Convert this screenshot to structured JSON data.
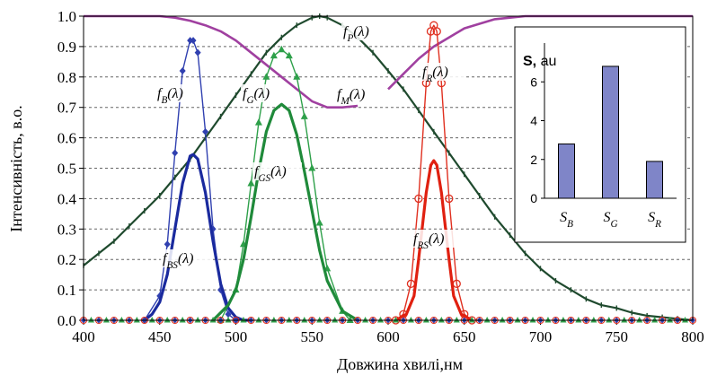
{
  "chart_data": [
    {
      "type": "line",
      "title": "",
      "xlabel": "Довжина хвилі,нм",
      "ylabel": "Інтенсивність, в.о.",
      "xlim": [
        400,
        800
      ],
      "ylim": [
        0,
        1.0
      ],
      "x_ticks": [
        "400",
        "450",
        "500",
        "550",
        "600",
        "650",
        "700",
        "750",
        "800"
      ],
      "y_ticks": [
        "0.0",
        "0.1",
        "0.2",
        "0.3",
        "0.4",
        "0.5",
        "0.6",
        "0.7",
        "0.8",
        "0.9",
        "1.0"
      ],
      "grid": "horizontal-dashed",
      "series": [
        {
          "key": "fP",
          "label": "f_P(λ)",
          "color": "#1f4a2e",
          "marker": "tick",
          "x": [
            400,
            410,
            420,
            430,
            440,
            450,
            460,
            470,
            480,
            490,
            500,
            510,
            520,
            530,
            540,
            550,
            555,
            560,
            570,
            580,
            590,
            600,
            610,
            620,
            630,
            640,
            650,
            660,
            670,
            680,
            690,
            700,
            710,
            720,
            730,
            740,
            750,
            760,
            770,
            780,
            790,
            800
          ],
          "y": [
            0.18,
            0.22,
            0.26,
            0.31,
            0.36,
            0.41,
            0.47,
            0.53,
            0.6,
            0.67,
            0.74,
            0.81,
            0.88,
            0.93,
            0.97,
            0.995,
            1.0,
            0.995,
            0.97,
            0.93,
            0.88,
            0.82,
            0.76,
            0.69,
            0.62,
            0.55,
            0.48,
            0.41,
            0.34,
            0.28,
            0.22,
            0.17,
            0.13,
            0.1,
            0.07,
            0.05,
            0.04,
            0.025,
            0.015,
            0.01,
            0.005,
            0.0
          ]
        },
        {
          "key": "fM_left",
          "label": "f_M(λ)",
          "color": "#a040a0",
          "marker": "none",
          "x": [
            400,
            450,
            460,
            470,
            480,
            490,
            500,
            510,
            520,
            530,
            540,
            550,
            560,
            570,
            580
          ],
          "y": [
            1.0,
            1.0,
            0.995,
            0.985,
            0.97,
            0.95,
            0.92,
            0.88,
            0.84,
            0.8,
            0.76,
            0.72,
            0.7,
            0.7,
            0.705
          ]
        },
        {
          "key": "fM_right",
          "label": "f_M(λ)",
          "color": "#a040a0",
          "marker": "none",
          "x": [
            600,
            610,
            620,
            630,
            640,
            650,
            660,
            670,
            680,
            690,
            700,
            800
          ],
          "y": [
            0.76,
            0.81,
            0.86,
            0.9,
            0.93,
            0.96,
            0.975,
            0.99,
            0.995,
            1.0,
            1.0,
            1.0
          ]
        },
        {
          "key": "fB",
          "label": "f_B(λ)",
          "color": "#3040b0",
          "marker": "diamond",
          "x": [
            440,
            450,
            455,
            460,
            465,
            470,
            472,
            475,
            480,
            485,
            490,
            495,
            500
          ],
          "y": [
            0.0,
            0.08,
            0.25,
            0.55,
            0.82,
            0.92,
            0.92,
            0.88,
            0.62,
            0.3,
            0.1,
            0.02,
            0.0
          ]
        },
        {
          "key": "fBS",
          "label": "f_BS(λ)",
          "color": "#1a2a9e",
          "marker": "none",
          "x": [
            440,
            445,
            450,
            455,
            460,
            465,
            470,
            472,
            475,
            480,
            485,
            490,
            495,
            500,
            505,
            510
          ],
          "y": [
            0.0,
            0.02,
            0.06,
            0.15,
            0.3,
            0.45,
            0.54,
            0.545,
            0.53,
            0.42,
            0.26,
            0.12,
            0.04,
            0.01,
            0.0,
            0.0
          ]
        },
        {
          "key": "fG",
          "label": "f_G(λ)",
          "color": "#2ea04a",
          "marker": "triangle",
          "x": [
            490,
            500,
            505,
            510,
            515,
            520,
            525,
            530,
            535,
            540,
            545,
            550,
            555,
            560,
            570,
            575
          ],
          "y": [
            0.0,
            0.1,
            0.25,
            0.45,
            0.65,
            0.8,
            0.87,
            0.89,
            0.87,
            0.8,
            0.67,
            0.5,
            0.32,
            0.17,
            0.03,
            0.0
          ]
        },
        {
          "key": "fGS",
          "label": "f_GS(λ)",
          "color": "#1f8a3a",
          "marker": "none",
          "x": [
            485,
            495,
            500,
            505,
            510,
            515,
            520,
            525,
            530,
            535,
            540,
            545,
            550,
            555,
            560,
            570,
            580
          ],
          "y": [
            0.0,
            0.05,
            0.1,
            0.2,
            0.34,
            0.49,
            0.62,
            0.69,
            0.71,
            0.69,
            0.61,
            0.49,
            0.36,
            0.23,
            0.13,
            0.03,
            0.0
          ]
        },
        {
          "key": "fR",
          "label": "f_R(λ)",
          "color": "#e03020",
          "marker": "circle",
          "x": [
            605,
            610,
            615,
            620,
            625,
            628,
            630,
            632,
            635,
            640,
            645,
            650,
            655
          ],
          "y": [
            0.0,
            0.02,
            0.12,
            0.4,
            0.78,
            0.95,
            0.97,
            0.95,
            0.78,
            0.4,
            0.12,
            0.02,
            0.0
          ]
        },
        {
          "key": "fRS",
          "label": "f_RS(λ)",
          "color": "#e02010",
          "marker": "none",
          "x": [
            605,
            612,
            617,
            620,
            625,
            628,
            630,
            632,
            635,
            640,
            643,
            648,
            655
          ],
          "y": [
            0.0,
            0.02,
            0.08,
            0.2,
            0.42,
            0.51,
            0.525,
            0.51,
            0.42,
            0.2,
            0.08,
            0.02,
            0.0
          ]
        }
      ],
      "labels": [
        {
          "series": "fP",
          "text": "f_P(λ)"
        },
        {
          "series": "fM_left",
          "text": "f_M(λ)"
        },
        {
          "series": "fB",
          "text": "f_B(λ)"
        },
        {
          "series": "fBS",
          "text": "f_BS(λ)"
        },
        {
          "series": "fG",
          "text": "f_G(λ)"
        },
        {
          "series": "fGS",
          "text": "f_GS(λ)"
        },
        {
          "series": "fR",
          "text": "f_R(λ)"
        },
        {
          "series": "fRS",
          "text": "f_RS(λ)"
        }
      ]
    },
    {
      "type": "bar",
      "title": "S, au",
      "categories": [
        "S_B",
        "S_G",
        "S_R"
      ],
      "values": [
        2.8,
        6.8,
        1.9
      ],
      "ylim": [
        0,
        8
      ],
      "y_ticks": [
        "0",
        "2",
        "4",
        "6"
      ],
      "bar_color": "#7f85c8"
    }
  ]
}
